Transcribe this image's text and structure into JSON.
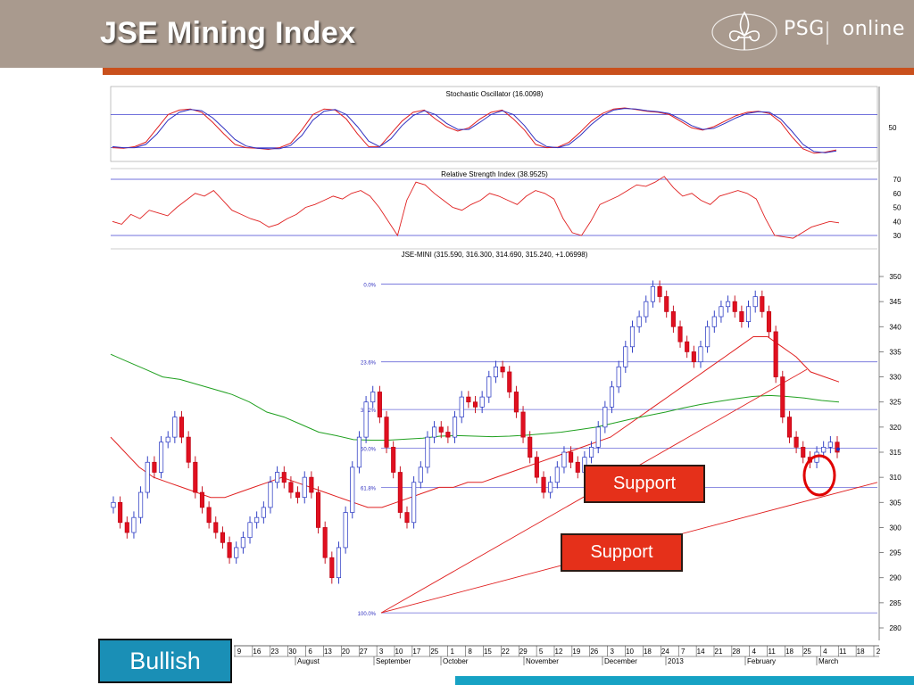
{
  "slide": {
    "title": "JSE Mining Index",
    "logo_text": "PSG",
    "logo_text_2": "online",
    "callout_1": "Support",
    "callout_2": "Support",
    "badge": "Bullish",
    "colors": {
      "header": "#a99a8e",
      "accent_bar": "#c9501c",
      "callout": "#e5301a",
      "badge": "#1a8fb6",
      "footer_bar": "#17a2c4"
    }
  },
  "chart_data": [
    {
      "type": "line",
      "title": "Stochastic Oscillator (16.0098)",
      "yticks": [
        "50"
      ],
      "ylim": [
        0,
        100
      ],
      "guide_levels": [
        80,
        20
      ],
      "series": [
        {
          "color": "#e02020",
          "values": [
            20,
            19,
            22,
            30,
            55,
            80,
            88,
            90,
            84,
            66,
            45,
            26,
            20,
            19,
            17,
            20,
            28,
            52,
            80,
            90,
            88,
            72,
            45,
            22,
            22,
            45,
            68,
            84,
            88,
            72,
            58,
            50,
            56,
            72,
            84,
            88,
            72,
            52,
            26,
            20,
            21,
            30,
            48,
            68,
            82,
            90,
            92,
            89,
            86,
            84,
            80,
            68,
            56,
            52,
            58,
            68,
            78,
            84,
            86,
            82,
            66,
            40,
            18,
            10,
            12,
            16
          ]
        },
        {
          "color": "#3030c0",
          "values": [
            22,
            20,
            20,
            26,
            45,
            70,
            84,
            89,
            87,
            74,
            55,
            35,
            23,
            19,
            18,
            18,
            24,
            42,
            70,
            86,
            89,
            80,
            58,
            32,
            22,
            36,
            60,
            78,
            87,
            80,
            64,
            53,
            53,
            66,
            80,
            87,
            80,
            60,
            34,
            22,
            20,
            26,
            42,
            62,
            78,
            88,
            91,
            90,
            87,
            85,
            82,
            72,
            60,
            53,
            55,
            64,
            74,
            82,
            85,
            84,
            72,
            50,
            26,
            13,
            11,
            14
          ]
        }
      ]
    },
    {
      "type": "line",
      "title": "Relative Strength Index (38.9525)",
      "yticks": [
        "70",
        "60",
        "50",
        "40",
        "30"
      ],
      "ylim": [
        25,
        72
      ],
      "guide_levels": [
        70,
        30
      ],
      "series": [
        {
          "color": "#e02020",
          "values": [
            40,
            38,
            45,
            42,
            48,
            46,
            44,
            50,
            55,
            60,
            58,
            62,
            55,
            48,
            45,
            42,
            40,
            36,
            38,
            42,
            45,
            50,
            52,
            55,
            58,
            56,
            60,
            62,
            58,
            50,
            40,
            30,
            55,
            68,
            66,
            60,
            55,
            50,
            48,
            52,
            55,
            60,
            58,
            55,
            52,
            58,
            62,
            60,
            56,
            42,
            32,
            30,
            40,
            52,
            55,
            58,
            62,
            66,
            65,
            68,
            72,
            64,
            58,
            60,
            55,
            52,
            58,
            60,
            62,
            60,
            56,
            42,
            30,
            29,
            28,
            32,
            36,
            38,
            40,
            39
          ]
        }
      ]
    },
    {
      "type": "candlestick",
      "title": "JSE-MINI (315.590, 316.300, 314.690, 315.240, +1.06998)",
      "yticks": [
        "350",
        "345",
        "340",
        "335",
        "330",
        "325",
        "320",
        "315",
        "310",
        "305",
        "300",
        "295",
        "290",
        "285",
        "280"
      ],
      "ylim": [
        278,
        352
      ],
      "fib_levels": [
        {
          "label": "0.0%",
          "value": 348.5
        },
        {
          "label": "23.6%",
          "value": 333.0
        },
        {
          "label": "38.2%",
          "value": 323.5
        },
        {
          "label": "50.0%",
          "value": 315.8
        },
        {
          "label": "61.8%",
          "value": 308.0
        },
        {
          "label": "100.0%",
          "value": 283.0
        }
      ],
      "xticks": [
        "9",
        "16",
        "23",
        "30",
        "6",
        "13",
        "20",
        "27",
        "3",
        "10",
        "17",
        "25",
        "1",
        "8",
        "15",
        "22",
        "29",
        "5",
        "12",
        "19",
        "26",
        "3",
        "10",
        "18",
        "24",
        "7",
        "14",
        "21",
        "28",
        "4",
        "11",
        "18",
        "25",
        "4",
        "11",
        "18",
        "2"
      ],
      "month_labels": [
        "August",
        "September",
        "October",
        "November",
        "December",
        "2013",
        "February",
        "March"
      ],
      "close": [
        305,
        301,
        299,
        302,
        307,
        313,
        311,
        317,
        318,
        322,
        318,
        313,
        307,
        304,
        301,
        299,
        297,
        294,
        296,
        298,
        301,
        302,
        304,
        309,
        311,
        309,
        307,
        306,
        310,
        307,
        300,
        294,
        290,
        296,
        303,
        312,
        318,
        325,
        327,
        322,
        316,
        311,
        303,
        301,
        309,
        312,
        318,
        320,
        319,
        318,
        322,
        326,
        325,
        324,
        326,
        330,
        332,
        331,
        327,
        323,
        318,
        314,
        310,
        307,
        309,
        312,
        315,
        313,
        311,
        314,
        316,
        320,
        324,
        328,
        332,
        336,
        340,
        342,
        345,
        348,
        346,
        343,
        340,
        337,
        335,
        333,
        336,
        340,
        342,
        344,
        345,
        343,
        341,
        344,
        346,
        343,
        339,
        330,
        322,
        318,
        316,
        314,
        313,
        315,
        316,
        317,
        315
      ],
      "ma_series": [
        {
          "color": "#e02020",
          "values": [
            318,
            315,
            312,
            310,
            309,
            308,
            307,
            306,
            306,
            307,
            308,
            309,
            310,
            309,
            308,
            307,
            306,
            305,
            304,
            304,
            305,
            306,
            307,
            308,
            308,
            309,
            309,
            310,
            311,
            312,
            313,
            314,
            315,
            316,
            317,
            318,
            320,
            322,
            324,
            326,
            328,
            330,
            332,
            334,
            336,
            338,
            338,
            336,
            334,
            331,
            330,
            329
          ]
        },
        {
          "color": "#20a020",
          "values": [
            334.5,
            333,
            331.5,
            330,
            329.5,
            328.5,
            327.5,
            326.5,
            325,
            323,
            322,
            320.5,
            319,
            318.3,
            317.5,
            317.4,
            317.4,
            317.6,
            317.8,
            318.2,
            318.3,
            318.2,
            318.1,
            318.2,
            318.4,
            318.7,
            319,
            319.5,
            320,
            320.8,
            321.6,
            322.3,
            323,
            323.8,
            324.5,
            325.1,
            325.6,
            326.1,
            326.3,
            326.1,
            325.8,
            325.3,
            325
          ]
        }
      ]
    }
  ]
}
